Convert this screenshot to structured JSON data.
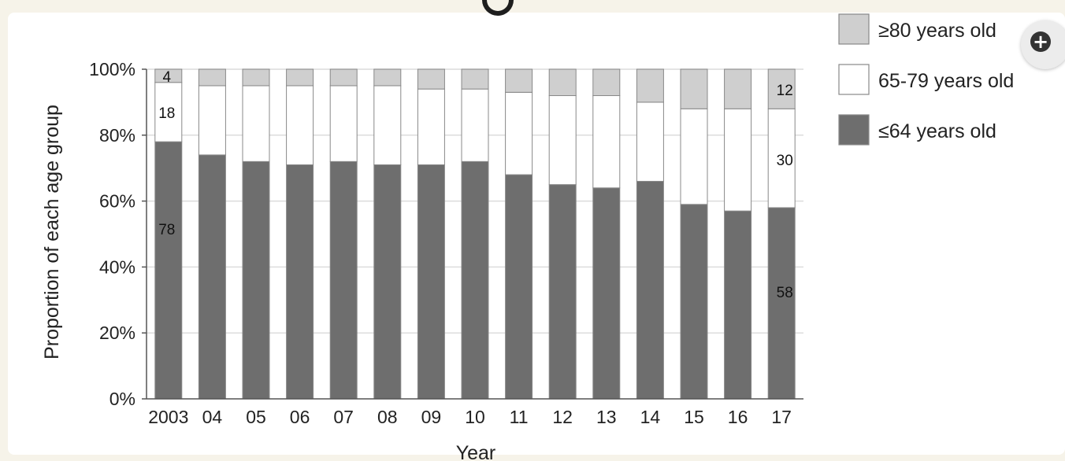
{
  "chart_data": {
    "type": "bar",
    "stacked": true,
    "xlabel": "Year",
    "ylabel": "Proportion of each age group",
    "ylim": [
      0,
      100
    ],
    "yticks": [
      "0%",
      "20%",
      "40%",
      "60%",
      "80%",
      "100%"
    ],
    "categories": [
      "2003",
      "04",
      "05",
      "06",
      "07",
      "08",
      "09",
      "10",
      "11",
      "12",
      "13",
      "14",
      "15",
      "16",
      "17"
    ],
    "series": [
      {
        "name": "≤64 years old",
        "color": "#6e6e6e",
        "values": [
          78,
          74,
          72,
          71,
          72,
          71,
          71,
          72,
          68,
          65,
          64,
          66,
          59,
          57,
          58
        ]
      },
      {
        "name": "65-79 years old",
        "color": "#ffffff",
        "values": [
          18,
          21,
          23,
          24,
          23,
          24,
          23,
          22,
          25,
          27,
          28,
          24,
          29,
          31,
          30
        ]
      },
      {
        "name": "≥80 years old",
        "color": "#cfcfcf",
        "values": [
          4,
          5,
          5,
          5,
          5,
          5,
          6,
          6,
          7,
          8,
          8,
          10,
          12,
          12,
          12
        ]
      }
    ],
    "data_labels": [
      {
        "category": "2003",
        "series": "≤64 years old",
        "text": "78"
      },
      {
        "category": "2003",
        "series": "65-79 years old",
        "text": "18"
      },
      {
        "category": "2003",
        "series": "≥80 years old",
        "text": "4"
      },
      {
        "category": "17",
        "series": "≤64 years old",
        "text": "58"
      },
      {
        "category": "17",
        "series": "65-79 years old",
        "text": "30"
      },
      {
        "category": "17",
        "series": "≥80 years old",
        "text": "12"
      }
    ],
    "legend": [
      {
        "label": "≥80 years old",
        "color": "#cfcfcf"
      },
      {
        "label": "65-79 years old",
        "color": "#ffffff"
      },
      {
        "label": "≤64 years old",
        "color": "#6e6e6e"
      }
    ],
    "legend_position": "top-right",
    "grid": true
  },
  "ui": {
    "zoom_icon": "zoom-in-icon"
  }
}
